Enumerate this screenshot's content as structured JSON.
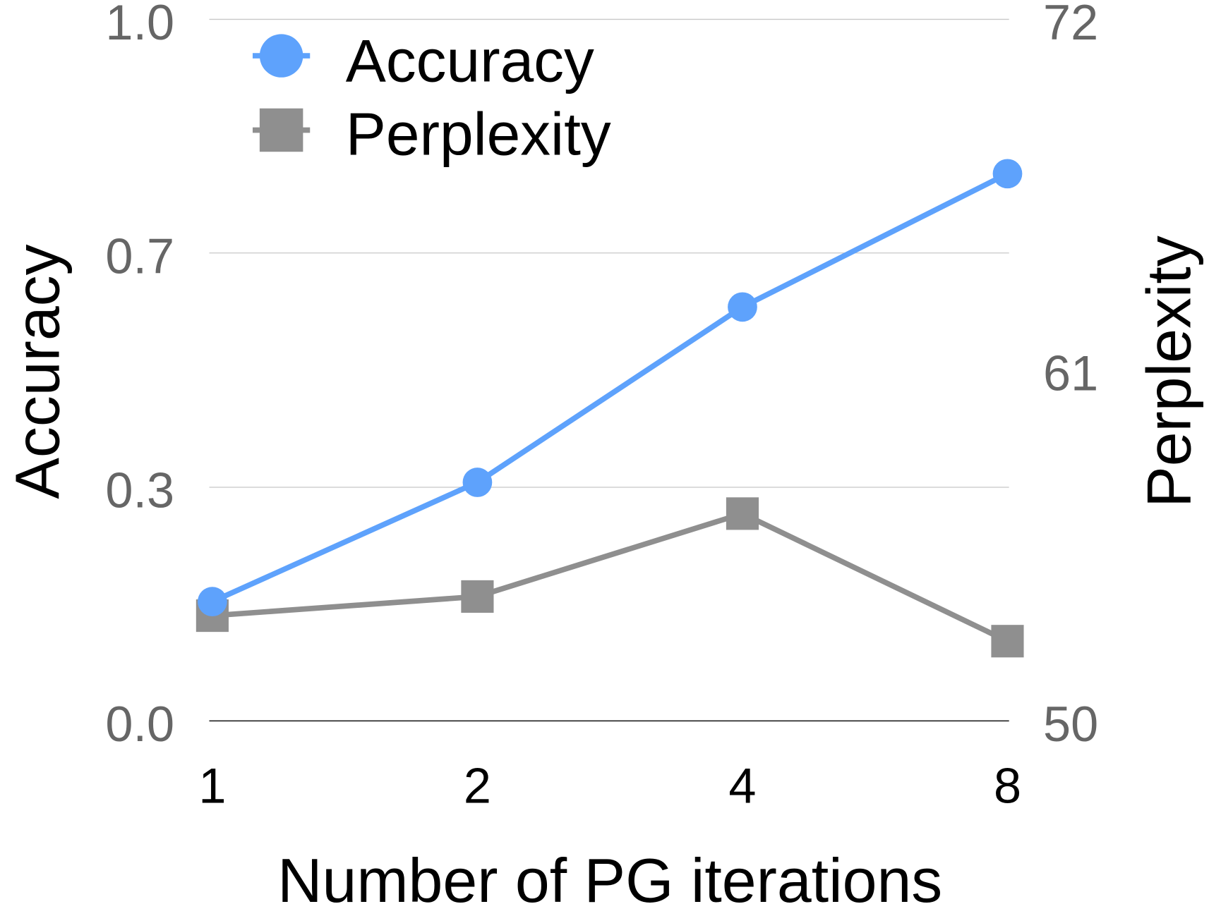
{
  "chart_data": {
    "type": "line",
    "title": "",
    "xlabel": "Number of PG iterations",
    "ylabel_left": "Accuracy",
    "ylabel_right": "Perplexity",
    "categories": [
      "1",
      "2",
      "4",
      "8"
    ],
    "y_left": {
      "lim": [
        0,
        1
      ],
      "ticks": [
        {
          "value": 0,
          "label": "0.0"
        },
        {
          "value": 0.333,
          "label": "0.3"
        },
        {
          "value": 0.667,
          "label": "0.7"
        },
        {
          "value": 1,
          "label": "1.0"
        }
      ]
    },
    "y_right": {
      "lim": [
        50,
        72
      ],
      "ticks": [
        {
          "value": 50,
          "label": "50"
        },
        {
          "value": 61,
          "label": "61"
        },
        {
          "value": 72,
          "label": "72"
        }
      ]
    },
    "grid": true,
    "legend_position": "top-left",
    "series": [
      {
        "name": "Accuracy",
        "axis": "left",
        "marker": "circle",
        "color": "#5ea2fc",
        "values": [
          0.17,
          0.34,
          0.59,
          0.78
        ]
      },
      {
        "name": "Perplexity",
        "axis": "right",
        "marker": "square",
        "color": "#8f8f8f",
        "values": [
          53.3,
          53.9,
          56.5,
          52.5
        ]
      }
    ]
  }
}
